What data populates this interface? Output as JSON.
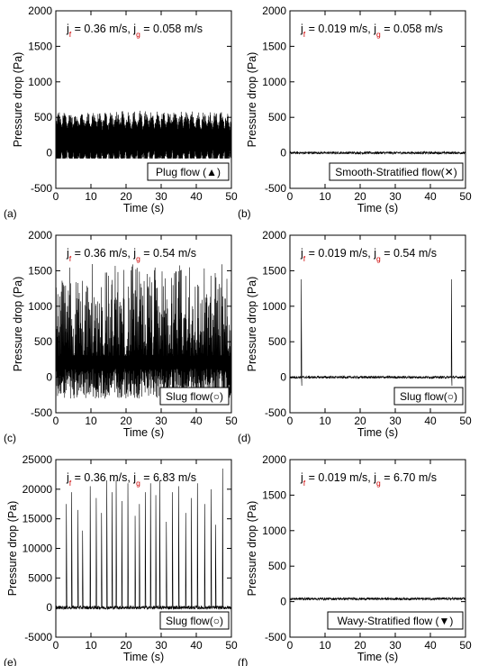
{
  "chart_data": [
    {
      "panel_label": "(a)",
      "type": "line",
      "annotation": {
        "jf": "0.36 m/s",
        "jg": "0.058 m/s"
      },
      "legend": "Plug flow (▲)",
      "legend_position": "bottom-right",
      "xlabel": "Time (s)",
      "ylabel": "Pressure drop (Pa)",
      "xlim": [
        0,
        50
      ],
      "ylim": [
        -500,
        2000
      ],
      "xticks": [
        0,
        10,
        20,
        30,
        40,
        50
      ],
      "yticks": [
        -500,
        0,
        500,
        1000,
        1500,
        2000
      ],
      "signal": {
        "kind": "dense-oscillation",
        "baseline": 180,
        "min": -80,
        "max": 600,
        "bursts": []
      }
    },
    {
      "panel_label": "(b)",
      "type": "line",
      "annotation": {
        "jf": "0.019 m/s",
        "jg": "0.058 m/s"
      },
      "legend": "Smooth-Stratified flow(✕)",
      "legend_position": "bottom-right",
      "xlabel": "Time (s)",
      "ylabel": "Pressure drop (Pa)",
      "xlim": [
        0,
        50
      ],
      "ylim": [
        -500,
        2000
      ],
      "xticks": [
        0,
        10,
        20,
        30,
        40,
        50
      ],
      "yticks": [
        -500,
        0,
        500,
        1000,
        1500,
        2000
      ],
      "signal": {
        "kind": "flat",
        "baseline": 0,
        "min": -30,
        "max": 40,
        "bursts": []
      }
    },
    {
      "panel_label": "(c)",
      "type": "line",
      "annotation": {
        "jf": "0.36 m/s",
        "jg": "0.54 m/s"
      },
      "legend": "Slug flow(○)",
      "legend_position": "bottom-right",
      "xlabel": "Time (s)",
      "ylabel": "Pressure drop (Pa)",
      "xlim": [
        0,
        50
      ],
      "ylim": [
        -500,
        2000
      ],
      "xticks": [
        0,
        10,
        20,
        30,
        40,
        50
      ],
      "yticks": [
        -500,
        0,
        500,
        1000,
        1500,
        2000
      ],
      "signal": {
        "kind": "dense-spiky",
        "baseline": 300,
        "min": -300,
        "max": 1600,
        "bursts": []
      }
    },
    {
      "panel_label": "(d)",
      "type": "line",
      "annotation": {
        "jf": "0.019 m/s",
        "jg": "0.54 m/s"
      },
      "legend": "Slug flow(○)",
      "legend_position": "bottom-right",
      "xlabel": "Time (s)",
      "ylabel": "Pressure drop (Pa)",
      "xlim": [
        0,
        50
      ],
      "ylim": [
        -500,
        2000
      ],
      "xticks": [
        0,
        10,
        20,
        30,
        40,
        50
      ],
      "yticks": [
        -500,
        0,
        500,
        1000,
        1500,
        2000
      ],
      "signal": {
        "kind": "flat",
        "baseline": 0,
        "min": -40,
        "max": 30,
        "bursts": [
          {
            "t": 3.2,
            "peak": 1380,
            "trough": -120
          },
          {
            "t": 46.0,
            "peak": 1380,
            "trough": -120
          }
        ]
      }
    },
    {
      "panel_label": "(e)",
      "type": "line",
      "annotation": {
        "jf": "0.36 m/s",
        "jg": "6.83 m/s"
      },
      "legend": "Slug flow(○)",
      "legend_position": "bottom-right",
      "xlabel": "Time (s)",
      "ylabel": "Pressure drop (Pa)",
      "xlim": [
        0,
        50
      ],
      "ylim": [
        -5000,
        25000
      ],
      "xticks": [
        0,
        10,
        20,
        30,
        40,
        50
      ],
      "yticks": [
        -5000,
        0,
        5000,
        10000,
        15000,
        20000,
        25000
      ],
      "signal": {
        "kind": "flat",
        "baseline": 0,
        "min": -700,
        "max": 500,
        "bursts": [
          {
            "t": 3.0,
            "peak": 17500,
            "trough": 0
          },
          {
            "t": 4.5,
            "peak": 19500,
            "trough": 0
          },
          {
            "t": 6.3,
            "peak": 16500,
            "trough": 0
          },
          {
            "t": 7.6,
            "peak": 13000,
            "trough": 0
          },
          {
            "t": 9.8,
            "peak": 20500,
            "trough": 0
          },
          {
            "t": 11.5,
            "peak": 18500,
            "trough": 0
          },
          {
            "t": 13.0,
            "peak": 16000,
            "trough": 0
          },
          {
            "t": 14.5,
            "peak": 21500,
            "trough": 0
          },
          {
            "t": 16.0,
            "peak": 19500,
            "trough": 0
          },
          {
            "t": 17.2,
            "peak": 21500,
            "trough": 0
          },
          {
            "t": 18.8,
            "peak": 18000,
            "trough": 0
          },
          {
            "t": 20.5,
            "peak": 21000,
            "trough": 0
          },
          {
            "t": 22.6,
            "peak": 15500,
            "trough": 0
          },
          {
            "t": 23.8,
            "peak": 17500,
            "trough": 0
          },
          {
            "t": 25.5,
            "peak": 19500,
            "trough": 0
          },
          {
            "t": 27.0,
            "peak": 21000,
            "trough": 0
          },
          {
            "t": 28.5,
            "peak": 19000,
            "trough": 0
          },
          {
            "t": 29.6,
            "peak": 21500,
            "trough": 0
          },
          {
            "t": 31.5,
            "peak": 14500,
            "trough": 0
          },
          {
            "t": 33.2,
            "peak": 19500,
            "trough": 0
          },
          {
            "t": 35.0,
            "peak": 20500,
            "trough": 0
          },
          {
            "t": 37.0,
            "peak": 16000,
            "trough": 0
          },
          {
            "t": 38.6,
            "peak": 18500,
            "trough": 0
          },
          {
            "t": 40.3,
            "peak": 21000,
            "trough": 0
          },
          {
            "t": 42.4,
            "peak": 17500,
            "trough": 0
          },
          {
            "t": 44.2,
            "peak": 20000,
            "trough": 0
          },
          {
            "t": 45.5,
            "peak": 14000,
            "trough": 0
          },
          {
            "t": 47.5,
            "peak": 23500,
            "trough": 0
          }
        ]
      }
    },
    {
      "panel_label": "(f)",
      "type": "line",
      "annotation": {
        "jf": "0.019 m/s",
        "jg": "6.70 m/s"
      },
      "legend": "Wavy-Stratified flow (▼)",
      "legend_position": "bottom-right",
      "xlabel": "Time (s)",
      "ylabel": "Pressure drop (Pa)",
      "xlim": [
        0,
        50
      ],
      "ylim": [
        -500,
        2000
      ],
      "xticks": [
        0,
        10,
        20,
        30,
        40,
        50
      ],
      "yticks": [
        -500,
        0,
        500,
        1000,
        1500,
        2000
      ],
      "signal": {
        "kind": "flat",
        "baseline": 40,
        "min": 10,
        "max": 80,
        "bursts": []
      }
    }
  ],
  "colors": {
    "trace": "#000000",
    "subscript": "#cc0000",
    "axis": "#000000"
  }
}
